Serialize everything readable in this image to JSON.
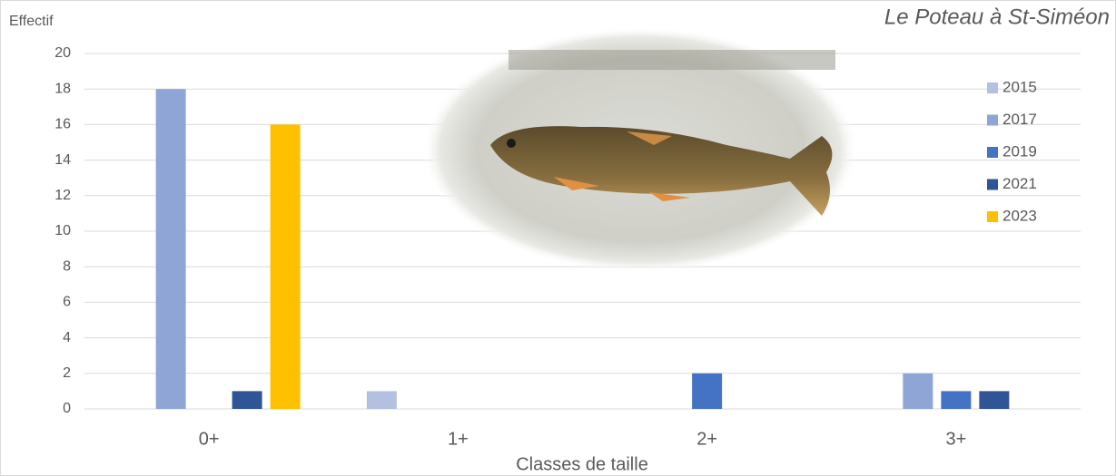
{
  "chart_data": {
    "type": "bar",
    "title": "Le Poteau à St-Siméon",
    "y_label": "Effectif",
    "x_label": "Classes de taille",
    "categories": [
      "0+",
      "1+",
      "2+",
      "3+"
    ],
    "series": [
      {
        "name": "2015",
        "color": "#b4c0e0",
        "values": [
          0,
          1,
          0,
          0
        ]
      },
      {
        "name": "2017",
        "color": "#8fa5d6",
        "values": [
          18,
          0,
          0,
          2
        ]
      },
      {
        "name": "2019",
        "color": "#4472c4",
        "values": [
          0,
          0,
          2,
          1
        ]
      },
      {
        "name": "2021",
        "color": "#2f5597",
        "values": [
          1,
          0,
          0,
          1
        ]
      },
      {
        "name": "2023",
        "color": "#ffc000",
        "values": [
          16,
          0,
          0,
          0
        ]
      }
    ],
    "ylim": [
      0,
      20
    ],
    "yticks": [
      0,
      2,
      4,
      6,
      8,
      10,
      12,
      14,
      16,
      18,
      20
    ],
    "grid": true,
    "legend": "right"
  }
}
